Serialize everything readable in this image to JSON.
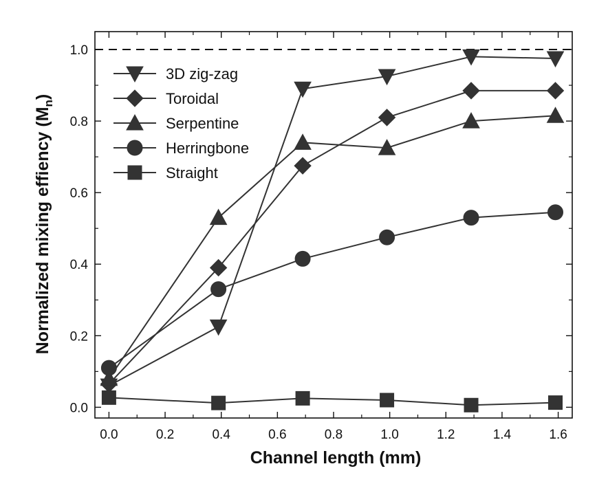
{
  "chart_data": {
    "type": "line",
    "xlabel": "Channel length (mm)",
    "ylabel": "Normalized mixing effiency (M",
    "ylabel_sub": "n",
    "ylabel_close": ")",
    "xlim": [
      -0.05,
      1.65
    ],
    "ylim": [
      -0.03,
      1.05
    ],
    "xticks": [
      0.0,
      0.2,
      0.4,
      0.6,
      0.8,
      1.0,
      1.2,
      1.4,
      1.6
    ],
    "xtick_labels": [
      "0.0",
      "0.2",
      "0.4",
      "0.6",
      "0.8",
      "1.0",
      "1.2",
      "1.4",
      "1.6"
    ],
    "yticks": [
      0.0,
      0.2,
      0.4,
      0.6,
      0.8,
      1.0
    ],
    "ytick_labels": [
      "0.0",
      "0.2",
      "0.4",
      "0.6",
      "0.8",
      "1.0"
    ],
    "reference_line_y": 1.0,
    "legend_position": "top-left",
    "color": "#333333",
    "series": [
      {
        "name": "3D zig-zag",
        "marker": "triangle-down",
        "x": [
          0.0,
          0.39,
          0.69,
          0.99,
          1.29,
          1.59
        ],
        "y": [
          0.06,
          0.225,
          0.89,
          0.925,
          0.98,
          0.975
        ]
      },
      {
        "name": "Toroidal",
        "marker": "diamond",
        "x": [
          0.0,
          0.39,
          0.69,
          0.99,
          1.29,
          1.59
        ],
        "y": [
          0.065,
          0.39,
          0.675,
          0.81,
          0.885,
          0.885
        ]
      },
      {
        "name": "Serpentine",
        "marker": "triangle-up",
        "x": [
          0.0,
          0.39,
          0.69,
          0.99,
          1.29,
          1.59
        ],
        "y": [
          0.08,
          0.53,
          0.74,
          0.725,
          0.8,
          0.815
        ]
      },
      {
        "name": "Herringbone",
        "marker": "circle",
        "x": [
          0.0,
          0.39,
          0.69,
          0.99,
          1.29,
          1.59
        ],
        "y": [
          0.11,
          0.33,
          0.415,
          0.475,
          0.53,
          0.545
        ]
      },
      {
        "name": "Straight",
        "marker": "square",
        "x": [
          0.0,
          0.39,
          0.69,
          0.99,
          1.29,
          1.59
        ],
        "y": [
          0.027,
          0.012,
          0.025,
          0.02,
          0.006,
          0.013
        ]
      }
    ]
  }
}
